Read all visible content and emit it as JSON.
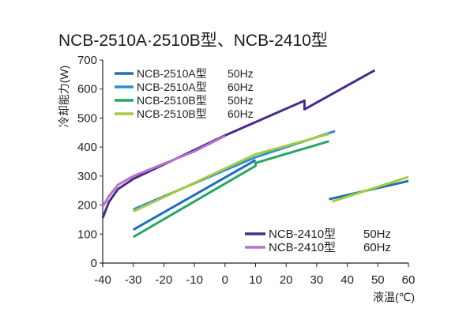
{
  "chart_data": {
    "type": "line",
    "title": "NCB-2510A·2510B型、NCB-2410型",
    "xlabel": "液温(℃)",
    "ylabel": "冷却能力(W)",
    "xlim": [
      -40,
      60
    ],
    "ylim": [
      0,
      700
    ],
    "x_ticks": [
      "-40",
      "-30",
      "-20",
      "-10",
      "0",
      "10",
      "20",
      "30",
      "40",
      "50",
      "60"
    ],
    "y_ticks": [
      "0",
      "100",
      "200",
      "300",
      "400",
      "500",
      "600",
      "700"
    ],
    "grid": false,
    "legend_groups": [
      {
        "placement": "top-left",
        "series_index": [
          0,
          1,
          2,
          3
        ]
      },
      {
        "placement": "bottom-right",
        "series_index": [
          4,
          5
        ]
      }
    ],
    "series": [
      {
        "name": "NCB-2510A型",
        "freq": "50Hz",
        "color": "#1f6fb8",
        "segments": [
          [
            [
              -30,
              115
            ],
            [
              10,
              355
            ]
          ],
          [
            [
              34,
              220
            ],
            [
              60,
              283
            ]
          ]
        ]
      },
      {
        "name": "NCB-2510A型",
        "freq": "60Hz",
        "color": "#2a90d8",
        "segments": [
          [
            [
              -30,
              185
            ],
            [
              10,
              365
            ],
            [
              36,
              455
            ]
          ]
        ]
      },
      {
        "name": "NCB-2510B型",
        "freq": "50Hz",
        "color": "#22a860",
        "segments": [
          [
            [
              -30,
              90
            ],
            [
              10,
              335
            ],
            [
              10,
              345
            ],
            [
              34,
              420
            ]
          ]
        ]
      },
      {
        "name": "NCB-2510B型",
        "freq": "60Hz",
        "color": "#a6cc3a",
        "segments": [
          [
            [
              -30,
              178
            ],
            [
              10,
              375
            ],
            [
              34,
              445
            ]
          ],
          [
            [
              35,
              212
            ],
            [
              60,
              297
            ]
          ]
        ]
      },
      {
        "name": "NCB-2410型",
        "freq": "50Hz",
        "color": "#4a2a8a",
        "segments": [
          [
            [
              -40,
              155
            ],
            [
              -38,
              210
            ],
            [
              -35,
              255
            ],
            [
              -30,
              290
            ],
            [
              0,
              440
            ],
            [
              26,
              560
            ],
            [
              26,
              530
            ],
            [
              49,
              665
            ]
          ]
        ]
      },
      {
        "name": "NCB-2410型",
        "freq": "60Hz",
        "color": "#b873cc",
        "segments": [
          [
            [
              -40,
              195
            ],
            [
              -38,
              230
            ],
            [
              -35,
              270
            ],
            [
              -30,
              300
            ],
            [
              -10,
              385
            ],
            [
              0,
              438
            ]
          ]
        ]
      }
    ]
  }
}
